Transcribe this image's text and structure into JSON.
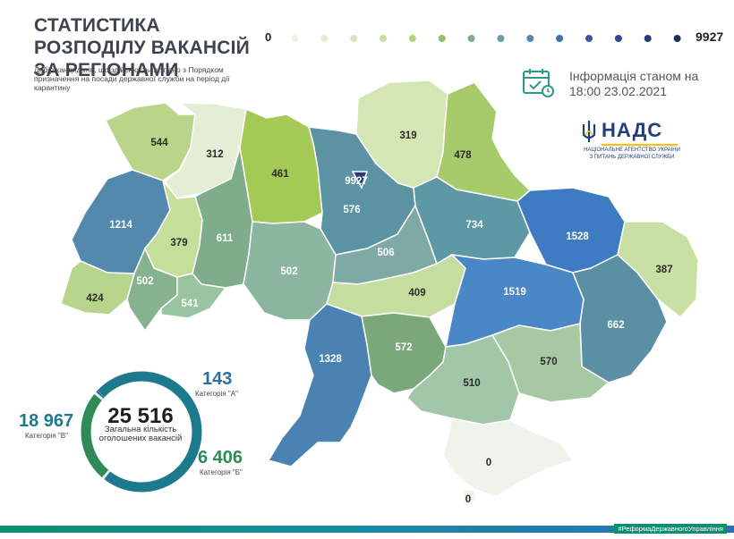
{
  "header": {
    "title": "СТАТИСТИКА РОЗПОДІЛУ ВАКАНСІЙ ЗА РЕГІОНАМИ",
    "subtitle": "Добір кандидатів, що здійснюється згідно з Порядком призначення на посади державної служби на період дії карантину"
  },
  "scale": {
    "min_label": "0",
    "max_label": "9927",
    "colors": [
      "#eef3e4",
      "#e3edd2",
      "#d7e7bd",
      "#c5df9e",
      "#b0d47e",
      "#94c06e",
      "#7fad8c",
      "#6a9ea5",
      "#5689b1",
      "#436fb0",
      "#365aa0",
      "#2c4a8f",
      "#243d7a",
      "#1c305f"
    ]
  },
  "info": {
    "label": "Інформація станом на",
    "date": "18:00 23.02.2021",
    "icon": "calendar-check-icon"
  },
  "logo": {
    "name": "НАДС",
    "sub_line1": "НАЦІОНАЛЬНЕ АГЕНТСТВО УКРАЇНИ",
    "sub_line2": "З ПИТАНЬ ДЕРЖАВНОЇ СЛУЖБИ",
    "icon": "trident-icon"
  },
  "regions": [
    {
      "id": "volyn",
      "value": "544",
      "color": "#b8d589"
    },
    {
      "id": "rivne",
      "value": "312",
      "color": "#e4eed5"
    },
    {
      "id": "zhytomyr",
      "value": "461",
      "color": "#a4c955"
    },
    {
      "id": "kyiv-oblast",
      "value": "576",
      "color": "#5b93a3"
    },
    {
      "id": "kyiv-city",
      "value": "9927",
      "color": "#2b3b78"
    },
    {
      "id": "chernihiv",
      "value": "319",
      "color": "#d4e6b4"
    },
    {
      "id": "sumy",
      "value": "478",
      "color": "#a7cb6a"
    },
    {
      "id": "lviv",
      "value": "1214",
      "color": "#5289ad"
    },
    {
      "id": "ternopil",
      "value": "379",
      "color": "#c4df9a"
    },
    {
      "id": "khmelnytskyi",
      "value": "611",
      "color": "#7fad8c"
    },
    {
      "id": "vinnytsia",
      "value": "502",
      "color": "#8cb6a0"
    },
    {
      "id": "cherkasy",
      "value": "506",
      "color": "#7fa9a4"
    },
    {
      "id": "poltava",
      "value": "734",
      "color": "#5e98a4"
    },
    {
      "id": "kharkiv",
      "value": "1528",
      "color": "#3f7bc2"
    },
    {
      "id": "luhansk",
      "value": "387",
      "color": "#c9e0a4"
    },
    {
      "id": "zakarpattia",
      "value": "424",
      "color": "#b7d48c"
    },
    {
      "id": "ivano-frankivsk",
      "value": "502",
      "color": "#86b28d"
    },
    {
      "id": "chernivtsi",
      "value": "541",
      "color": "#9ac4a0"
    },
    {
      "id": "kirovohrad",
      "value": "409",
      "color": "#c5dea0"
    },
    {
      "id": "dnipropetrovsk",
      "value": "1519",
      "color": "#4a87c6"
    },
    {
      "id": "donetsk",
      "value": "662",
      "color": "#5b8fa4"
    },
    {
      "id": "odesa",
      "value": "1328",
      "color": "#4a83b1"
    },
    {
      "id": "mykolaiv",
      "value": "572",
      "color": "#7aa87a"
    },
    {
      "id": "kherson",
      "value": "510",
      "color": "#a1c6a8"
    },
    {
      "id": "zaporizhzhia",
      "value": "570",
      "color": "#a6c9a4"
    },
    {
      "id": "crimea",
      "value": "0",
      "color": "#f0f3ec"
    },
    {
      "id": "sevastopol",
      "value": "0",
      "color": "#f0f3ec"
    }
  ],
  "summary": {
    "total": "25 516",
    "caption": "Загальна кількість оголошених вакансій",
    "cat_a_value": "143",
    "cat_a_label": "Категорія \"А\"",
    "cat_b_value": "6 406",
    "cat_b_label": "Категорія \"Б\"",
    "cat_v_value": "18 967",
    "cat_v_label": "Категорія \"В\"",
    "cat_a_share": 0.0056,
    "cat_b_share": 0.251,
    "cat_v_share": 0.7434,
    "color_a": "#2c6fa0",
    "color_b": "#2e8b57",
    "color_v": "#1d7a8c"
  },
  "footer": {
    "text": "#РеформаДержавногоУправління"
  }
}
